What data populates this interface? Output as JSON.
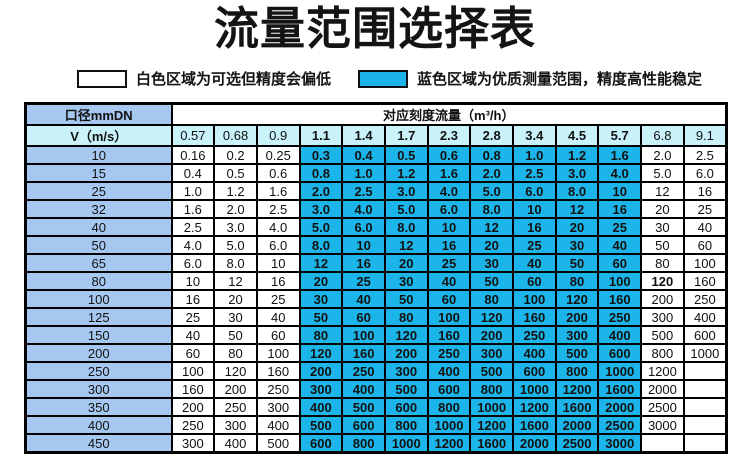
{
  "title": "流量范围选择表",
  "legend": {
    "white": {
      "label": "白色区域为可选但精度会偏低",
      "color": "#ffffff"
    },
    "blue": {
      "label": "蓝色区域为优质测量范围，精度高性能稳定",
      "color": "#1cb5e9"
    }
  },
  "table": {
    "corner_header": "口径mmDN",
    "span_header": "对应刻度流量（m³/h）",
    "row_header": "V（m/s）",
    "velocities": [
      "0.57",
      "0.68",
      "0.9",
      "1.1",
      "1.4",
      "1.7",
      "2.3",
      "2.8",
      "3.4",
      "4.5",
      "5.7",
      "6.8",
      "9.1"
    ],
    "blue_col_start": 3,
    "blue_col_end": 10,
    "bold_extra": [
      [
        7,
        11
      ]
    ],
    "rows": [
      {
        "dn": "10",
        "values": [
          "0.16",
          "0.2",
          "0.25",
          "0.3",
          "0.4",
          "0.5",
          "0.6",
          "0.8",
          "1.0",
          "1.2",
          "1.6",
          "2.0",
          "2.5"
        ]
      },
      {
        "dn": "15",
        "values": [
          "0.4",
          "0.5",
          "0.6",
          "0.8",
          "1.0",
          "1.2",
          "1.6",
          "2.0",
          "2.5",
          "3.0",
          "4.0",
          "5.0",
          "6.0"
        ]
      },
      {
        "dn": "25",
        "values": [
          "1.0",
          "1.2",
          "1.6",
          "2.0",
          "2.5",
          "3.0",
          "4.0",
          "5.0",
          "6.0",
          "8.0",
          "10",
          "12",
          "16"
        ]
      },
      {
        "dn": "32",
        "values": [
          "1.6",
          "2.0",
          "2.5",
          "3.0",
          "4.0",
          "5.0",
          "6.0",
          "8.0",
          "10",
          "12",
          "16",
          "20",
          "25"
        ]
      },
      {
        "dn": "40",
        "values": [
          "2.5",
          "3.0",
          "4.0",
          "5.0",
          "6.0",
          "8.0",
          "10",
          "12",
          "16",
          "20",
          "25",
          "30",
          "40"
        ]
      },
      {
        "dn": "50",
        "values": [
          "4.0",
          "5.0",
          "6.0",
          "8.0",
          "10",
          "12",
          "16",
          "20",
          "25",
          "30",
          "40",
          "50",
          "60"
        ]
      },
      {
        "dn": "65",
        "values": [
          "6.0",
          "8.0",
          "10",
          "12",
          "16",
          "20",
          "25",
          "30",
          "40",
          "50",
          "60",
          "80",
          "100"
        ]
      },
      {
        "dn": "80",
        "values": [
          "10",
          "12",
          "16",
          "20",
          "25",
          "30",
          "40",
          "50",
          "60",
          "80",
          "100",
          "120",
          "160"
        ]
      },
      {
        "dn": "100",
        "values": [
          "16",
          "20",
          "25",
          "30",
          "40",
          "50",
          "60",
          "80",
          "100",
          "120",
          "160",
          "200",
          "250"
        ]
      },
      {
        "dn": "125",
        "values": [
          "25",
          "30",
          "40",
          "50",
          "60",
          "80",
          "100",
          "120",
          "160",
          "200",
          "250",
          "300",
          "400"
        ]
      },
      {
        "dn": "150",
        "values": [
          "40",
          "50",
          "60",
          "80",
          "100",
          "120",
          "160",
          "200",
          "250",
          "300",
          "400",
          "500",
          "600"
        ]
      },
      {
        "dn": "200",
        "values": [
          "60",
          "80",
          "100",
          "120",
          "160",
          "200",
          "250",
          "300",
          "400",
          "500",
          "600",
          "800",
          "1000"
        ]
      },
      {
        "dn": "250",
        "values": [
          "100",
          "120",
          "160",
          "200",
          "250",
          "300",
          "400",
          "500",
          "600",
          "800",
          "1000",
          "1200",
          ""
        ]
      },
      {
        "dn": "300",
        "values": [
          "160",
          "200",
          "250",
          "300",
          "400",
          "500",
          "600",
          "800",
          "1000",
          "1200",
          "1600",
          "2000",
          ""
        ]
      },
      {
        "dn": "350",
        "values": [
          "200",
          "250",
          "300",
          "400",
          "500",
          "600",
          "800",
          "1000",
          "1200",
          "1600",
          "2000",
          "2500",
          ""
        ]
      },
      {
        "dn": "400",
        "values": [
          "250",
          "300",
          "400",
          "500",
          "600",
          "800",
          "1000",
          "1200",
          "1600",
          "2000",
          "2500",
          "3000",
          ""
        ]
      },
      {
        "dn": "450",
        "values": [
          "300",
          "400",
          "500",
          "600",
          "800",
          "1000",
          "1200",
          "1600",
          "2000",
          "2500",
          "3000",
          "",
          ""
        ]
      }
    ],
    "colors": {
      "dn_col": "#a6c8f0",
      "v_row": "#c9f2fb",
      "optimal": "#1cb5e9",
      "selectable": "#ffffff",
      "border": "#000000"
    }
  }
}
